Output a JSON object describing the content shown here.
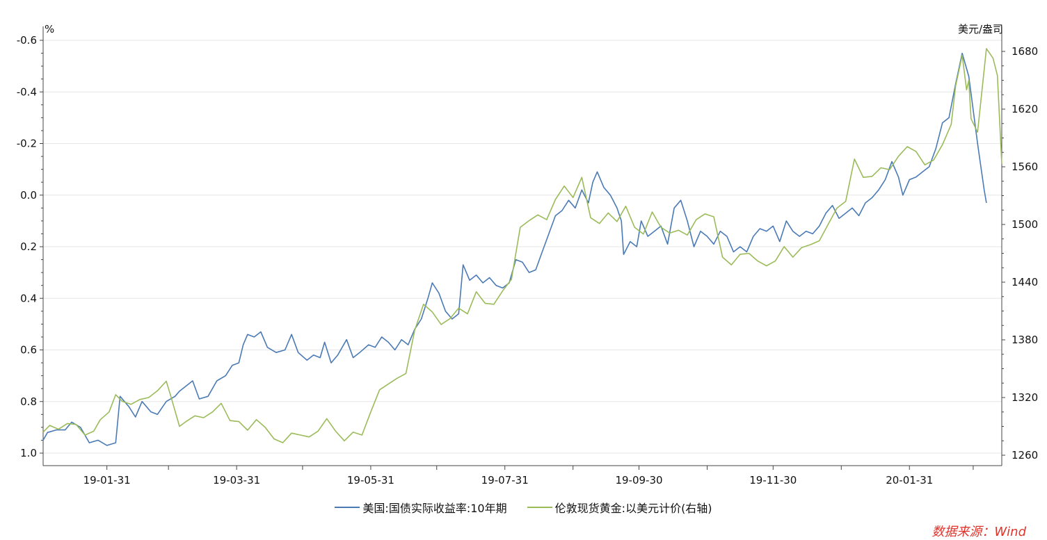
{
  "colors": {
    "series_0": "#4a7ab5",
    "series_1": "#9bbb59",
    "grid": "#e6e6e6",
    "axis": "#444444",
    "source": "#e0332a"
  },
  "chart_data": {
    "type": "line",
    "left_unit": "%",
    "right_unit": "美元/盎司",
    "left_axis": {
      "range": [
        1.0,
        -0.6
      ],
      "inverted": true,
      "ticks": [
        "-0.6",
        "-0.4",
        "-0.2",
        "0.0",
        "0.2",
        "0.4",
        "0.6",
        "0.8",
        "1.0"
      ]
    },
    "right_axis": {
      "range": [
        1260,
        1680
      ],
      "ticks": [
        "1680",
        "1620",
        "1560",
        "1500",
        "1440",
        "1380",
        "1320",
        "1260"
      ]
    },
    "x_axis": {
      "range": [
        "2019-01-02",
        "2020-03-13"
      ],
      "ticks": [
        "19-01-31",
        "19-03-31",
        "19-05-31",
        "19-07-31",
        "19-09-30",
        "19-11-30",
        "20-01-31"
      ]
    },
    "grid": true,
    "legend_position": "bottom",
    "series": [
      {
        "name": "美国:国债实际收益率:10年期",
        "axis": "left",
        "points": [
          [
            "2019-01-02",
            0.95
          ],
          [
            "2019-01-04",
            0.92
          ],
          [
            "2019-01-08",
            0.91
          ],
          [
            "2019-01-12",
            0.91
          ],
          [
            "2019-01-15",
            0.88
          ],
          [
            "2019-01-19",
            0.9
          ],
          [
            "2019-01-23",
            0.96
          ],
          [
            "2019-01-27",
            0.95
          ],
          [
            "2019-01-31",
            0.97
          ],
          [
            "2019-02-04",
            0.96
          ],
          [
            "2019-02-06",
            0.78
          ],
          [
            "2019-02-10",
            0.82
          ],
          [
            "2019-02-13",
            0.86
          ],
          [
            "2019-02-16",
            0.8
          ],
          [
            "2019-02-20",
            0.84
          ],
          [
            "2019-02-23",
            0.85
          ],
          [
            "2019-02-27",
            0.8
          ],
          [
            "2019-03-03",
            0.78
          ],
          [
            "2019-03-05",
            0.76
          ],
          [
            "2019-03-08",
            0.74
          ],
          [
            "2019-03-11",
            0.72
          ],
          [
            "2019-03-14",
            0.79
          ],
          [
            "2019-03-18",
            0.78
          ],
          [
            "2019-03-22",
            0.72
          ],
          [
            "2019-03-26",
            0.7
          ],
          [
            "2019-03-29",
            0.66
          ],
          [
            "2019-04-01",
            0.65
          ],
          [
            "2019-04-03",
            0.58
          ],
          [
            "2019-04-05",
            0.54
          ],
          [
            "2019-04-08",
            0.55
          ],
          [
            "2019-04-11",
            0.53
          ],
          [
            "2019-04-14",
            0.59
          ],
          [
            "2019-04-18",
            0.61
          ],
          [
            "2019-04-22",
            0.6
          ],
          [
            "2019-04-25",
            0.54
          ],
          [
            "2019-04-28",
            0.61
          ],
          [
            "2019-05-02",
            0.64
          ],
          [
            "2019-05-05",
            0.62
          ],
          [
            "2019-05-08",
            0.63
          ],
          [
            "2019-05-10",
            0.57
          ],
          [
            "2019-05-13",
            0.65
          ],
          [
            "2019-05-16",
            0.62
          ],
          [
            "2019-05-20",
            0.56
          ],
          [
            "2019-05-23",
            0.63
          ],
          [
            "2019-05-26",
            0.61
          ],
          [
            "2019-05-30",
            0.58
          ],
          [
            "2019-06-02",
            0.59
          ],
          [
            "2019-06-05",
            0.55
          ],
          [
            "2019-06-08",
            0.57
          ],
          [
            "2019-06-11",
            0.6
          ],
          [
            "2019-06-14",
            0.56
          ],
          [
            "2019-06-17",
            0.58
          ],
          [
            "2019-06-20",
            0.52
          ],
          [
            "2019-06-23",
            0.48
          ],
          [
            "2019-06-26",
            0.4
          ],
          [
            "2019-06-28",
            0.34
          ],
          [
            "2019-07-01",
            0.38
          ],
          [
            "2019-07-04",
            0.45
          ],
          [
            "2019-07-07",
            0.48
          ],
          [
            "2019-07-10",
            0.46
          ],
          [
            "2019-07-12",
            0.27
          ],
          [
            "2019-07-15",
            0.33
          ],
          [
            "2019-07-18",
            0.31
          ],
          [
            "2019-07-21",
            0.34
          ],
          [
            "2019-07-24",
            0.32
          ],
          [
            "2019-07-27",
            0.35
          ],
          [
            "2019-07-30",
            0.36
          ],
          [
            "2019-08-02",
            0.34
          ],
          [
            "2019-08-05",
            0.25
          ],
          [
            "2019-08-08",
            0.26
          ],
          [
            "2019-08-11",
            0.3
          ],
          [
            "2019-08-14",
            0.29
          ],
          [
            "2019-08-17",
            0.22
          ],
          [
            "2019-08-20",
            0.15
          ],
          [
            "2019-08-23",
            0.08
          ],
          [
            "2019-08-26",
            0.06
          ],
          [
            "2019-08-29",
            0.02
          ],
          [
            "2019-09-01",
            0.05
          ],
          [
            "2019-09-04",
            -0.02
          ],
          [
            "2019-09-07",
            0.03
          ],
          [
            "2019-09-09",
            -0.05
          ],
          [
            "2019-09-11",
            -0.09
          ],
          [
            "2019-09-14",
            -0.03
          ],
          [
            "2019-09-17",
            0.0
          ],
          [
            "2019-09-20",
            0.05
          ],
          [
            "2019-09-22",
            0.1
          ],
          [
            "2019-09-23",
            0.23
          ],
          [
            "2019-09-26",
            0.18
          ],
          [
            "2019-09-29",
            0.2
          ],
          [
            "2019-10-01",
            0.1
          ],
          [
            "2019-10-04",
            0.16
          ],
          [
            "2019-10-07",
            0.14
          ],
          [
            "2019-10-10",
            0.12
          ],
          [
            "2019-10-13",
            0.19
          ],
          [
            "2019-10-16",
            0.05
          ],
          [
            "2019-10-19",
            0.02
          ],
          [
            "2019-10-22",
            0.1
          ],
          [
            "2019-10-25",
            0.2
          ],
          [
            "2019-10-28",
            0.14
          ],
          [
            "2019-10-31",
            0.16
          ],
          [
            "2019-11-03",
            0.19
          ],
          [
            "2019-11-06",
            0.14
          ],
          [
            "2019-11-09",
            0.16
          ],
          [
            "2019-11-12",
            0.22
          ],
          [
            "2019-11-15",
            0.2
          ],
          [
            "2019-11-18",
            0.22
          ],
          [
            "2019-11-21",
            0.16
          ],
          [
            "2019-11-24",
            0.13
          ],
          [
            "2019-11-27",
            0.14
          ],
          [
            "2019-11-30",
            0.12
          ],
          [
            "2019-12-03",
            0.18
          ],
          [
            "2019-12-06",
            0.1
          ],
          [
            "2019-12-09",
            0.14
          ],
          [
            "2019-12-12",
            0.16
          ],
          [
            "2019-12-15",
            0.14
          ],
          [
            "2019-12-18",
            0.15
          ],
          [
            "2019-12-21",
            0.12
          ],
          [
            "2019-12-24",
            0.07
          ],
          [
            "2019-12-27",
            0.04
          ],
          [
            "2019-12-30",
            0.09
          ],
          [
            "2020-01-02",
            0.07
          ],
          [
            "2020-01-05",
            0.05
          ],
          [
            "2020-01-08",
            0.08
          ],
          [
            "2020-01-11",
            0.03
          ],
          [
            "2020-01-14",
            0.01
          ],
          [
            "2020-01-17",
            -0.02
          ],
          [
            "2020-01-20",
            -0.06
          ],
          [
            "2020-01-23",
            -0.13
          ],
          [
            "2020-01-26",
            -0.07
          ],
          [
            "2020-01-28",
            0.0
          ],
          [
            "2020-01-31",
            -0.06
          ],
          [
            "2020-02-03",
            -0.07
          ],
          [
            "2020-02-06",
            -0.09
          ],
          [
            "2020-02-09",
            -0.11
          ],
          [
            "2020-02-12",
            -0.18
          ],
          [
            "2020-02-15",
            -0.28
          ],
          [
            "2020-02-18",
            -0.3
          ],
          [
            "2020-02-21",
            -0.43
          ],
          [
            "2020-02-24",
            -0.55
          ],
          [
            "2020-02-27",
            -0.46
          ],
          [
            "2020-03-02",
            -0.2
          ],
          [
            "2020-03-05",
            -0.02
          ],
          [
            "2020-03-06",
            0.03
          ]
        ]
      },
      {
        "name": "伦敦现货黄金:以美元计价(右轴)",
        "axis": "right",
        "points": [
          [
            "2019-01-02",
            1284
          ],
          [
            "2019-01-05",
            1291
          ],
          [
            "2019-01-09",
            1287
          ],
          [
            "2019-01-13",
            1293
          ],
          [
            "2019-01-17",
            1292
          ],
          [
            "2019-01-21",
            1281
          ],
          [
            "2019-01-25",
            1285
          ],
          [
            "2019-01-28",
            1297
          ],
          [
            "2019-02-01",
            1305
          ],
          [
            "2019-02-04",
            1323
          ],
          [
            "2019-02-07",
            1316
          ],
          [
            "2019-02-11",
            1313
          ],
          [
            "2019-02-15",
            1318
          ],
          [
            "2019-02-19",
            1320
          ],
          [
            "2019-02-23",
            1327
          ],
          [
            "2019-02-27",
            1337
          ],
          [
            "2019-03-01",
            1322
          ],
          [
            "2019-03-05",
            1290
          ],
          [
            "2019-03-08",
            1295
          ],
          [
            "2019-03-12",
            1301
          ],
          [
            "2019-03-16",
            1299
          ],
          [
            "2019-03-20",
            1305
          ],
          [
            "2019-03-24",
            1314
          ],
          [
            "2019-03-28",
            1296
          ],
          [
            "2019-04-01",
            1295
          ],
          [
            "2019-04-05",
            1286
          ],
          [
            "2019-04-09",
            1297
          ],
          [
            "2019-04-13",
            1289
          ],
          [
            "2019-04-17",
            1277
          ],
          [
            "2019-04-21",
            1273
          ],
          [
            "2019-04-25",
            1283
          ],
          [
            "2019-04-29",
            1281
          ],
          [
            "2019-05-03",
            1279
          ],
          [
            "2019-05-07",
            1285
          ],
          [
            "2019-05-11",
            1298
          ],
          [
            "2019-05-15",
            1285
          ],
          [
            "2019-05-19",
            1275
          ],
          [
            "2019-05-23",
            1284
          ],
          [
            "2019-05-27",
            1281
          ],
          [
            "2019-05-31",
            1305
          ],
          [
            "2019-06-04",
            1328
          ],
          [
            "2019-06-08",
            1334
          ],
          [
            "2019-06-12",
            1340
          ],
          [
            "2019-06-16",
            1345
          ],
          [
            "2019-06-20",
            1390
          ],
          [
            "2019-06-24",
            1417
          ],
          [
            "2019-06-28",
            1409
          ],
          [
            "2019-07-02",
            1396
          ],
          [
            "2019-07-06",
            1402
          ],
          [
            "2019-07-10",
            1413
          ],
          [
            "2019-07-14",
            1407
          ],
          [
            "2019-07-18",
            1430
          ],
          [
            "2019-07-22",
            1418
          ],
          [
            "2019-07-26",
            1417
          ],
          [
            "2019-07-30",
            1431
          ],
          [
            "2019-08-03",
            1443
          ],
          [
            "2019-08-07",
            1497
          ],
          [
            "2019-08-11",
            1504
          ],
          [
            "2019-08-15",
            1510
          ],
          [
            "2019-08-19",
            1505
          ],
          [
            "2019-08-23",
            1526
          ],
          [
            "2019-08-27",
            1540
          ],
          [
            "2019-08-31",
            1528
          ],
          [
            "2019-09-04",
            1549
          ],
          [
            "2019-09-08",
            1507
          ],
          [
            "2019-09-12",
            1501
          ],
          [
            "2019-09-16",
            1512
          ],
          [
            "2019-09-20",
            1503
          ],
          [
            "2019-09-24",
            1519
          ],
          [
            "2019-09-28",
            1497
          ],
          [
            "2019-10-02",
            1490
          ],
          [
            "2019-10-06",
            1513
          ],
          [
            "2019-10-10",
            1497
          ],
          [
            "2019-10-14",
            1491
          ],
          [
            "2019-10-18",
            1494
          ],
          [
            "2019-10-22",
            1489
          ],
          [
            "2019-10-26",
            1505
          ],
          [
            "2019-10-30",
            1511
          ],
          [
            "2019-11-03",
            1508
          ],
          [
            "2019-11-07",
            1466
          ],
          [
            "2019-11-11",
            1458
          ],
          [
            "2019-11-15",
            1469
          ],
          [
            "2019-11-19",
            1470
          ],
          [
            "2019-11-23",
            1462
          ],
          [
            "2019-11-27",
            1457
          ],
          [
            "2019-12-01",
            1462
          ],
          [
            "2019-12-05",
            1477
          ],
          [
            "2019-12-09",
            1466
          ],
          [
            "2019-12-13",
            1476
          ],
          [
            "2019-12-17",
            1479
          ],
          [
            "2019-12-21",
            1483
          ],
          [
            "2019-12-25",
            1500
          ],
          [
            "2019-12-29",
            1517
          ],
          [
            "2020-01-02",
            1524
          ],
          [
            "2020-01-06",
            1568
          ],
          [
            "2020-01-10",
            1549
          ],
          [
            "2020-01-14",
            1550
          ],
          [
            "2020-01-18",
            1559
          ],
          [
            "2020-01-22",
            1557
          ],
          [
            "2020-01-26",
            1571
          ],
          [
            "2020-01-30",
            1581
          ],
          [
            "2020-02-03",
            1576
          ],
          [
            "2020-02-07",
            1562
          ],
          [
            "2020-02-11",
            1567
          ],
          [
            "2020-02-15",
            1583
          ],
          [
            "2020-02-19",
            1604
          ],
          [
            "2020-02-21",
            1644
          ],
          [
            "2020-02-24",
            1676
          ],
          [
            "2020-02-26",
            1640
          ],
          [
            "2020-02-27",
            1650
          ],
          [
            "2020-02-28",
            1610
          ],
          [
            "2020-03-02",
            1596
          ],
          [
            "2020-03-06",
            1683
          ],
          [
            "2020-03-09",
            1673
          ],
          [
            "2020-03-11",
            1655
          ],
          [
            "2020-03-13",
            1563
          ]
        ]
      }
    ]
  },
  "source": "数据来源：Wind"
}
